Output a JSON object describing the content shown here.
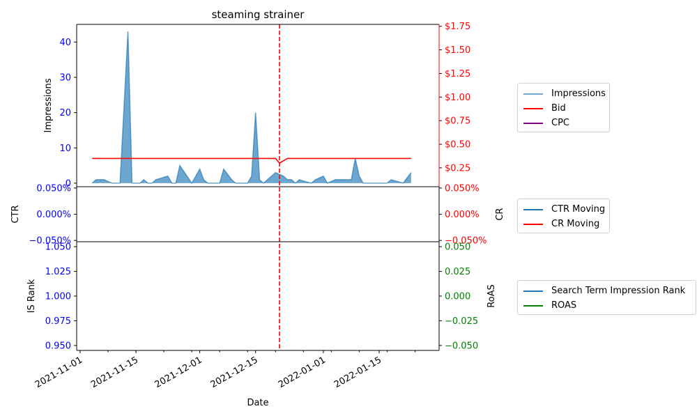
{
  "chart_data": [
    {
      "panel": "top",
      "type": "area",
      "title": "steaming strainer",
      "x_type": "date",
      "xlim": [
        "2021-11-01",
        "2022-01-31"
      ],
      "ylabel_left": "Impressions",
      "ylim_left": [
        -1,
        45
      ],
      "yticks_left": [
        0,
        10,
        20,
        30,
        40
      ],
      "ytick_labels_left": [
        "0",
        "10",
        "20",
        "30",
        "40"
      ],
      "ylim_right": [
        0.05,
        1.77
      ],
      "yticks_right": [
        0.25,
        0.5,
        0.75,
        1.0,
        1.25,
        1.5,
        1.75
      ],
      "ytick_labels_right": [
        "$0.25",
        "$0.50",
        "$0.75",
        "$1.00",
        "$1.25",
        "$1.50",
        "$1.75"
      ],
      "vline_date": "2021-12-21",
      "series": [
        {
          "name": "Impressions",
          "axis": "left",
          "color": "#1f77b4",
          "points": [
            [
              "2021-11-04",
              0
            ],
            [
              "2021-11-05",
              1
            ],
            [
              "2021-11-07",
              1
            ],
            [
              "2021-11-08",
              0.5
            ],
            [
              "2021-11-09",
              0
            ],
            [
              "2021-11-11",
              0
            ],
            [
              "2021-11-13",
              43
            ],
            [
              "2021-11-14",
              0
            ],
            [
              "2021-11-16",
              0
            ],
            [
              "2021-11-17",
              1
            ],
            [
              "2021-11-18",
              0
            ],
            [
              "2021-11-19",
              0
            ],
            [
              "2021-11-20",
              1
            ],
            [
              "2021-11-23",
              2
            ],
            [
              "2021-11-24",
              0
            ],
            [
              "2021-11-25",
              0
            ],
            [
              "2021-11-26",
              5
            ],
            [
              "2021-11-29",
              0
            ],
            [
              "2021-12-01",
              4
            ],
            [
              "2021-12-02",
              1
            ],
            [
              "2021-12-03",
              0
            ],
            [
              "2021-12-06",
              0
            ],
            [
              "2021-12-07",
              4
            ],
            [
              "2021-12-09",
              1
            ],
            [
              "2021-12-10",
              0
            ],
            [
              "2021-12-13",
              0
            ],
            [
              "2021-12-14",
              2
            ],
            [
              "2021-12-15",
              20
            ],
            [
              "2021-12-16",
              1
            ],
            [
              "2021-12-17",
              0
            ],
            [
              "2021-12-20",
              3
            ],
            [
              "2021-12-22",
              2
            ],
            [
              "2021-12-23",
              1
            ],
            [
              "2021-12-24",
              1
            ],
            [
              "2021-12-25",
              0
            ],
            [
              "2021-12-26",
              1
            ],
            [
              "2021-12-27",
              0.6
            ],
            [
              "2021-12-29",
              0
            ],
            [
              "2021-12-30",
              1
            ],
            [
              "2022-01-01",
              2
            ],
            [
              "2022-01-02",
              0
            ],
            [
              "2022-01-04",
              1
            ],
            [
              "2022-01-08",
              1
            ],
            [
              "2022-01-09",
              7
            ],
            [
              "2022-01-10",
              2
            ],
            [
              "2022-01-11",
              0
            ],
            [
              "2022-01-17",
              0
            ],
            [
              "2022-01-18",
              1
            ],
            [
              "2022-01-21",
              0
            ],
            [
              "2022-01-23",
              3
            ]
          ]
        },
        {
          "name": "Bid",
          "axis": "right",
          "color": "#ff0000",
          "points": [
            [
              "2021-11-04",
              0.35
            ],
            [
              "2021-12-20",
              0.35
            ],
            [
              "2021-12-21",
              0.3
            ],
            [
              "2021-12-23",
              0.35
            ],
            [
              "2022-01-23",
              0.35
            ]
          ]
        },
        {
          "name": "CPC",
          "axis": "right",
          "color": "#800080",
          "points": []
        }
      ]
    },
    {
      "panel": "middle",
      "type": "line",
      "ylabel_left": "CTR",
      "ylabel_right": "CR",
      "yticks_left": [
        0.05,
        0.0,
        -0.05
      ],
      "ytick_labels_left": [
        "0.050%",
        "0.000%",
        "−0.050%"
      ],
      "ytick_labels_right": [
        "0.050%",
        "0.000%",
        "−0.050%"
      ],
      "series": [
        {
          "name": "CTR Moving",
          "color": "#1f77b4",
          "points": []
        },
        {
          "name": "CR Moving",
          "color": "#ff0000",
          "points": []
        }
      ]
    },
    {
      "panel": "bottom",
      "type": "line",
      "ylabel_left": "IS Rank",
      "ylabel_right": "RoAS",
      "xlabel": "Date",
      "ylim_left": [
        0.945,
        1.055
      ],
      "yticks_left": [
        0.95,
        0.975,
        1.0,
        1.025,
        1.05
      ],
      "ytick_labels_left": [
        "0.950",
        "0.975",
        "1.000",
        "1.025",
        "1.050"
      ],
      "ylim_right": [
        -0.055,
        0.055
      ],
      "yticks_right": [
        0.05,
        0.025,
        0.0,
        -0.025,
        -0.05
      ],
      "ytick_labels_right": [
        "0.050",
        "0.025",
        "0.000",
        "−0.025",
        "−0.050"
      ],
      "xtick_dates": [
        "2021-11-01",
        "2021-11-15",
        "2021-12-01",
        "2021-12-15",
        "2022-01-01",
        "2022-01-15"
      ],
      "xtick_labels": [
        "2021-11-01",
        "2021-11-15",
        "2021-12-01",
        "2021-12-15",
        "2022-01-01",
        "2022-01-15"
      ],
      "series": [
        {
          "name": "Search Term Impression Rank",
          "color": "#1f77b4",
          "points": []
        },
        {
          "name": "ROAS",
          "color": "#008000",
          "points": []
        }
      ]
    }
  ],
  "colors": {
    "left_axis": "#0000ff",
    "right_axis_top": "#ff0000",
    "right_axis_mid": "#ff0000",
    "right_axis_bottom": "#008000",
    "vline": "#ff0000"
  }
}
